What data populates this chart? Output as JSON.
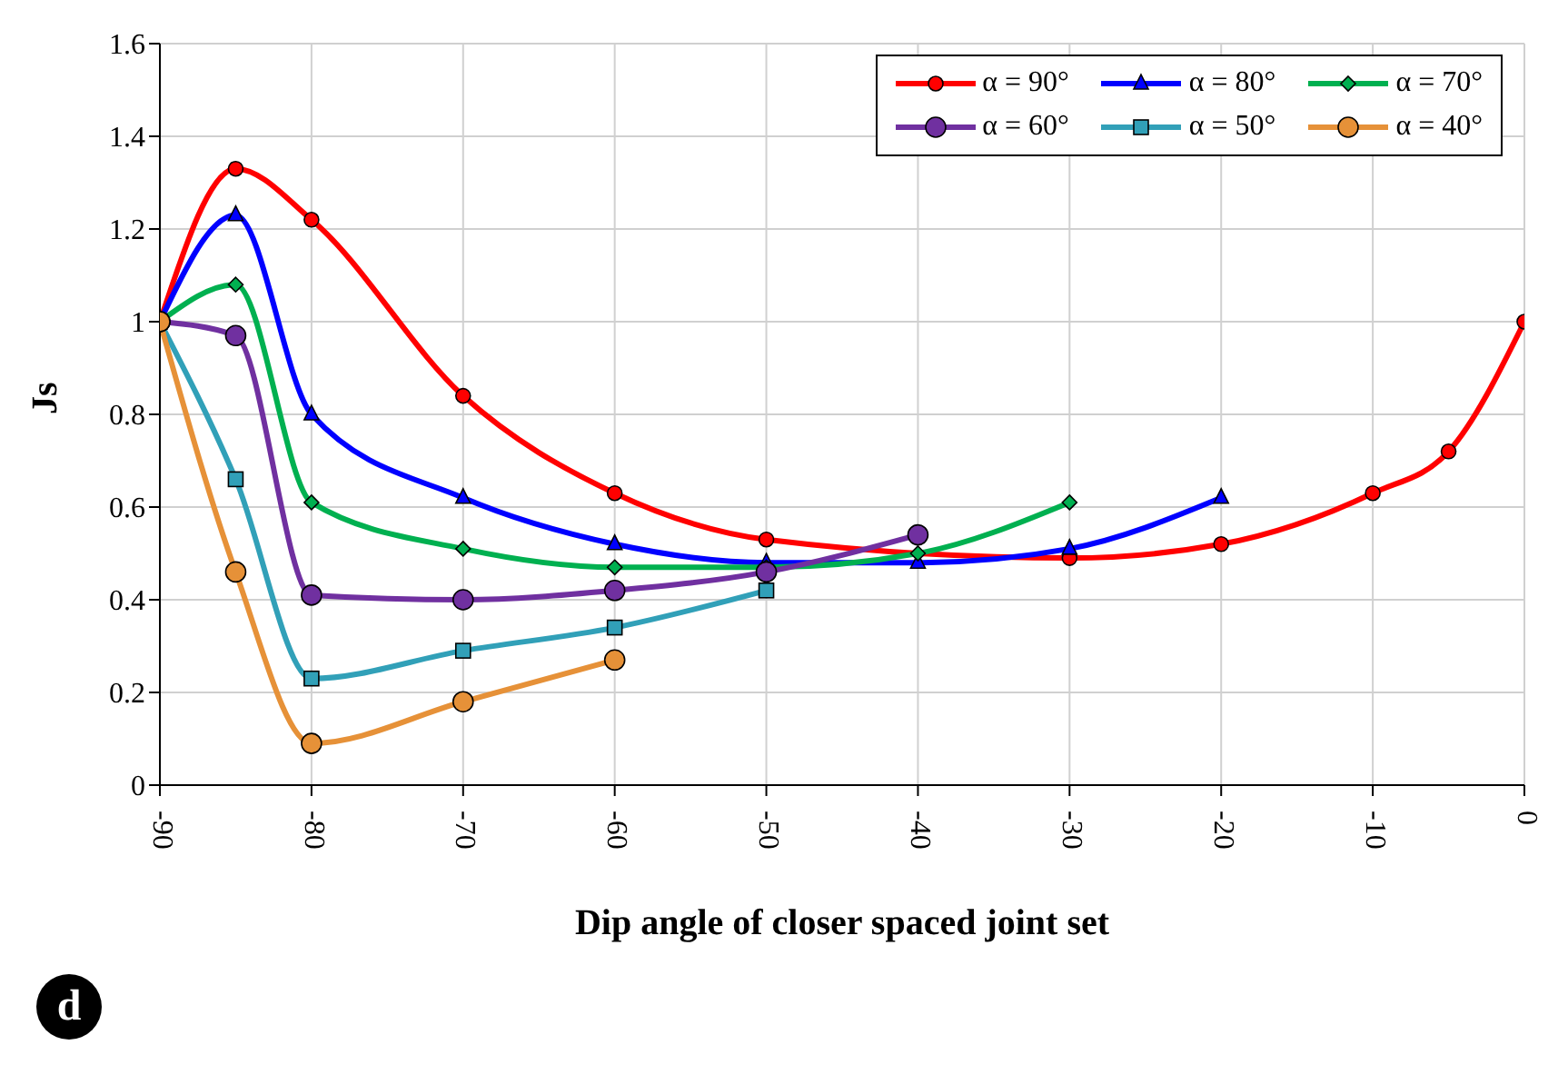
{
  "chart_data": {
    "type": "line",
    "xlabel": "Dip angle of closer spaced joint set",
    "ylabel": "Js",
    "annotations": [
      "d"
    ],
    "xlim": [
      -90,
      0
    ],
    "xticks": [
      -90,
      -80,
      -70,
      -60,
      -50,
      -40,
      -30,
      -20,
      -10,
      0
    ],
    "ylim": [
      0,
      1.6
    ],
    "yticks": [
      0,
      0.2,
      0.4,
      0.6,
      0.8,
      1,
      1.2,
      1.4,
      1.6
    ],
    "grid": true,
    "legend": "top right",
    "series": [
      {
        "name": "α = 90°",
        "color": "#ff0000",
        "marker": "circle",
        "x": [
          -90,
          -85,
          -80,
          -70,
          -60,
          -50,
          -30,
          -20,
          -10,
          -5,
          0
        ],
        "values": [
          1.0,
          1.33,
          1.22,
          0.84,
          0.63,
          0.53,
          0.49,
          0.52,
          0.63,
          0.72,
          1.0
        ]
      },
      {
        "name": "α = 80°",
        "color": "#0000ff",
        "marker": "triangle",
        "x": [
          -90,
          -85,
          -80,
          -70,
          -60,
          -50,
          -40,
          -30,
          -20
        ],
        "values": [
          1.0,
          1.23,
          0.8,
          0.62,
          0.52,
          0.48,
          0.48,
          0.51,
          0.62
        ]
      },
      {
        "name": "α = 70°",
        "color": "#00b050",
        "marker": "diamond",
        "x": [
          -90,
          -85,
          -80,
          -70,
          -60,
          -50,
          -40,
          -30
        ],
        "values": [
          1.0,
          1.08,
          0.61,
          0.51,
          0.47,
          0.47,
          0.5,
          0.61
        ]
      },
      {
        "name": "α = 60°",
        "color": "#7030a0",
        "marker": "circle",
        "x": [
          -90,
          -85,
          -80,
          -70,
          -60,
          -50,
          -40
        ],
        "values": [
          1.0,
          0.97,
          0.41,
          0.4,
          0.42,
          0.46,
          0.54
        ]
      },
      {
        "name": "α = 50°",
        "color": "#31a0b8",
        "marker": "square",
        "x": [
          -90,
          -85,
          -80,
          -70,
          -60,
          -50
        ],
        "values": [
          1.0,
          0.66,
          0.23,
          0.29,
          0.34,
          0.42
        ]
      },
      {
        "name": "α = 40°",
        "color": "#e69138",
        "marker": "circle",
        "x": [
          -90,
          -85,
          -80,
          -70,
          -60
        ],
        "values": [
          1.0,
          0.46,
          0.09,
          0.18,
          0.27
        ]
      }
    ]
  }
}
